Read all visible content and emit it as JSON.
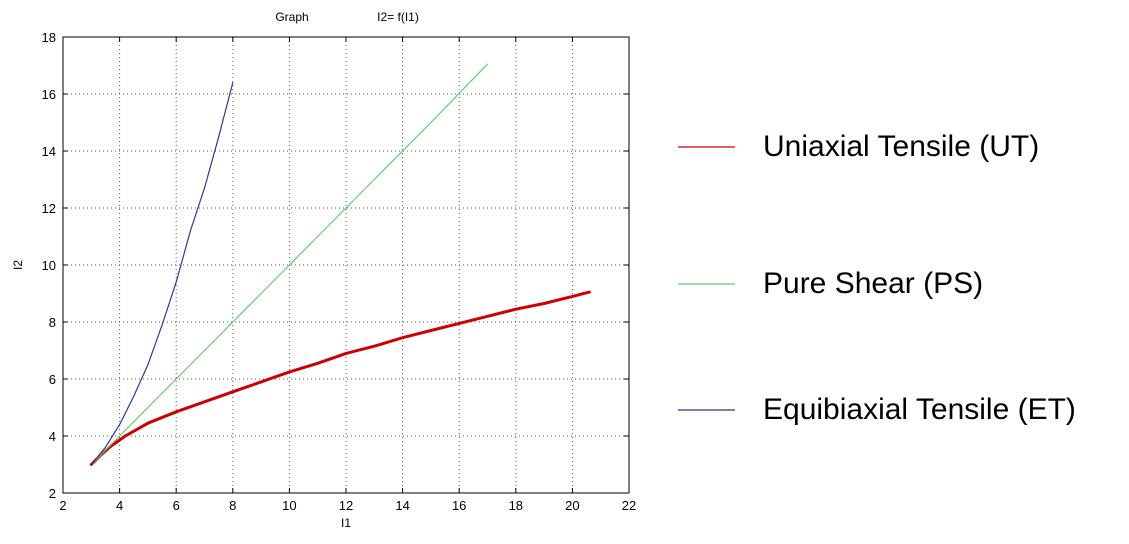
{
  "chart_data": {
    "type": "line",
    "title_left": "Graph",
    "title_right": "I2= f(I1)",
    "xlabel": "I1",
    "ylabel": "I2",
    "xlim": [
      2,
      22
    ],
    "ylim": [
      2,
      18
    ],
    "x_ticks": [
      2,
      4,
      6,
      8,
      10,
      12,
      14,
      16,
      18,
      20,
      22
    ],
    "y_ticks": [
      2,
      4,
      6,
      8,
      10,
      12,
      14,
      16,
      18
    ],
    "grid": true,
    "legend_position": "right-outside",
    "series": [
      {
        "name": "Uniaxial Tensile (UT)",
        "color": "#cc0000",
        "points": [
          [
            3.0,
            3.0
          ],
          [
            3.3,
            3.3
          ],
          [
            3.7,
            3.65
          ],
          [
            4.2,
            4.0
          ],
          [
            5.0,
            4.45
          ],
          [
            6.0,
            4.85
          ],
          [
            7.0,
            5.2
          ],
          [
            8.0,
            5.55
          ],
          [
            9.0,
            5.9
          ],
          [
            10.0,
            6.25
          ],
          [
            11.0,
            6.55
          ],
          [
            12.0,
            6.9
          ],
          [
            13.0,
            7.15
          ],
          [
            14.0,
            7.45
          ],
          [
            15.0,
            7.7
          ],
          [
            16.0,
            7.95
          ],
          [
            17.0,
            8.2
          ],
          [
            18.0,
            8.45
          ],
          [
            19.0,
            8.65
          ],
          [
            20.0,
            8.9
          ],
          [
            20.6,
            9.05
          ]
        ]
      },
      {
        "name": "Pure Shear (PS)",
        "color": "#66cc66",
        "points": [
          [
            3.0,
            3.0
          ],
          [
            5.0,
            5.0
          ],
          [
            7.0,
            7.0
          ],
          [
            9.0,
            9.0
          ],
          [
            11.0,
            11.0
          ],
          [
            13.0,
            13.0
          ],
          [
            15.0,
            15.0
          ],
          [
            17.0,
            17.05
          ]
        ]
      },
      {
        "name": "Equibiaxial Tensile (ET)",
        "color": "#333399",
        "points": [
          [
            3.0,
            3.0
          ],
          [
            3.5,
            3.6
          ],
          [
            4.0,
            4.4
          ],
          [
            4.5,
            5.4
          ],
          [
            5.0,
            6.5
          ],
          [
            5.5,
            7.9
          ],
          [
            6.0,
            9.4
          ],
          [
            6.5,
            11.2
          ],
          [
            7.0,
            12.7
          ],
          [
            7.5,
            14.5
          ],
          [
            8.0,
            16.4
          ]
        ]
      }
    ]
  }
}
